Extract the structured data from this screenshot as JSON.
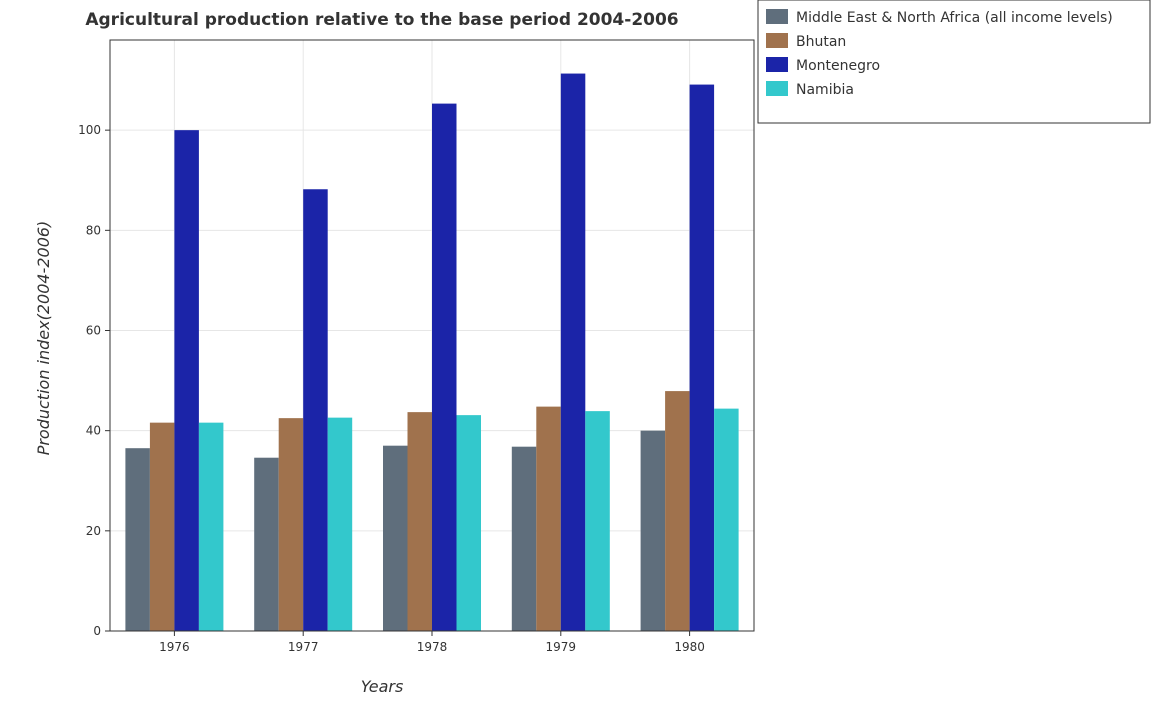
{
  "chart_data": {
    "type": "bar",
    "title": "Agricultural production relative to the base period 2004-2006",
    "xlabel": "Years",
    "ylabel": "Production index(2004-2006)",
    "categories": [
      "1976",
      "1977",
      "1978",
      "1979",
      "1980"
    ],
    "ylim": [
      0,
      118
    ],
    "yticks": [
      0,
      20,
      40,
      60,
      80,
      100
    ],
    "grid": true,
    "legend_position": "top-right",
    "series": [
      {
        "name": "Middle East & North Africa (all income levels)",
        "color": "#5f6e7c",
        "values": [
          36.5,
          34.6,
          37.0,
          36.8,
          40.0
        ]
      },
      {
        "name": "Bhutan",
        "color": "#a0724d",
        "values": [
          41.6,
          42.5,
          43.7,
          44.8,
          47.9
        ]
      },
      {
        "name": "Montenegro",
        "color": "#1b24a8",
        "values": [
          100.0,
          88.2,
          105.3,
          111.3,
          109.1
        ]
      },
      {
        "name": "Namibia",
        "color": "#33c8cc",
        "values": [
          41.6,
          42.6,
          43.1,
          43.9,
          44.4
        ]
      }
    ]
  }
}
